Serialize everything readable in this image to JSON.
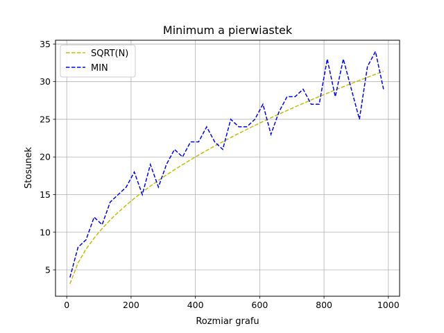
{
  "chart_data": {
    "type": "line",
    "title": "Minimum a pierwiastek",
    "xlabel": "Rozmiar grafu",
    "ylabel": "Stosunek",
    "xlim": [
      -35,
      1035
    ],
    "ylim": [
      1.5,
      35.5
    ],
    "xticks": [
      0,
      200,
      400,
      600,
      800,
      1000
    ],
    "yticks": [
      5,
      10,
      15,
      20,
      25,
      30,
      35
    ],
    "grid": true,
    "legend_position": "upper left",
    "series": [
      {
        "name": "SQRT(N)",
        "color": "#bfbf00",
        "dash": "dashed",
        "x": [
          10,
          35,
          60,
          85,
          110,
          135,
          160,
          185,
          210,
          235,
          260,
          285,
          310,
          335,
          360,
          385,
          410,
          435,
          460,
          485,
          510,
          535,
          560,
          585,
          610,
          635,
          660,
          685,
          710,
          735,
          760,
          785,
          810,
          835,
          860,
          885,
          910,
          935,
          960,
          985
        ],
        "y": [
          3.16,
          5.92,
          7.75,
          9.22,
          10.49,
          11.62,
          12.65,
          13.6,
          14.49,
          15.33,
          16.12,
          16.88,
          17.61,
          18.3,
          18.97,
          19.62,
          20.25,
          20.86,
          21.45,
          22.02,
          22.58,
          23.13,
          23.66,
          24.19,
          24.7,
          25.2,
          25.69,
          26.17,
          26.65,
          27.11,
          27.57,
          28.02,
          28.46,
          28.9,
          29.33,
          29.75,
          30.17,
          30.58,
          30.98,
          31.38
        ]
      },
      {
        "name": "MIN",
        "color": "#0000ff",
        "dash": "dashed",
        "x": [
          10,
          35,
          60,
          85,
          110,
          135,
          160,
          185,
          210,
          235,
          260,
          285,
          310,
          335,
          360,
          385,
          410,
          435,
          460,
          485,
          510,
          535,
          560,
          585,
          610,
          635,
          660,
          685,
          710,
          735,
          760,
          785,
          810,
          835,
          860,
          885,
          910,
          935,
          960,
          985
        ],
        "y": [
          4,
          8,
          9,
          12,
          11,
          14,
          15,
          16,
          18,
          15,
          19,
          16,
          19,
          21,
          20,
          22,
          22,
          24,
          22,
          21,
          25,
          24,
          24,
          25,
          27,
          23,
          26,
          28,
          28,
          29,
          27,
          27,
          33,
          28,
          33,
          29,
          25,
          32,
          34,
          29
        ]
      }
    ]
  }
}
